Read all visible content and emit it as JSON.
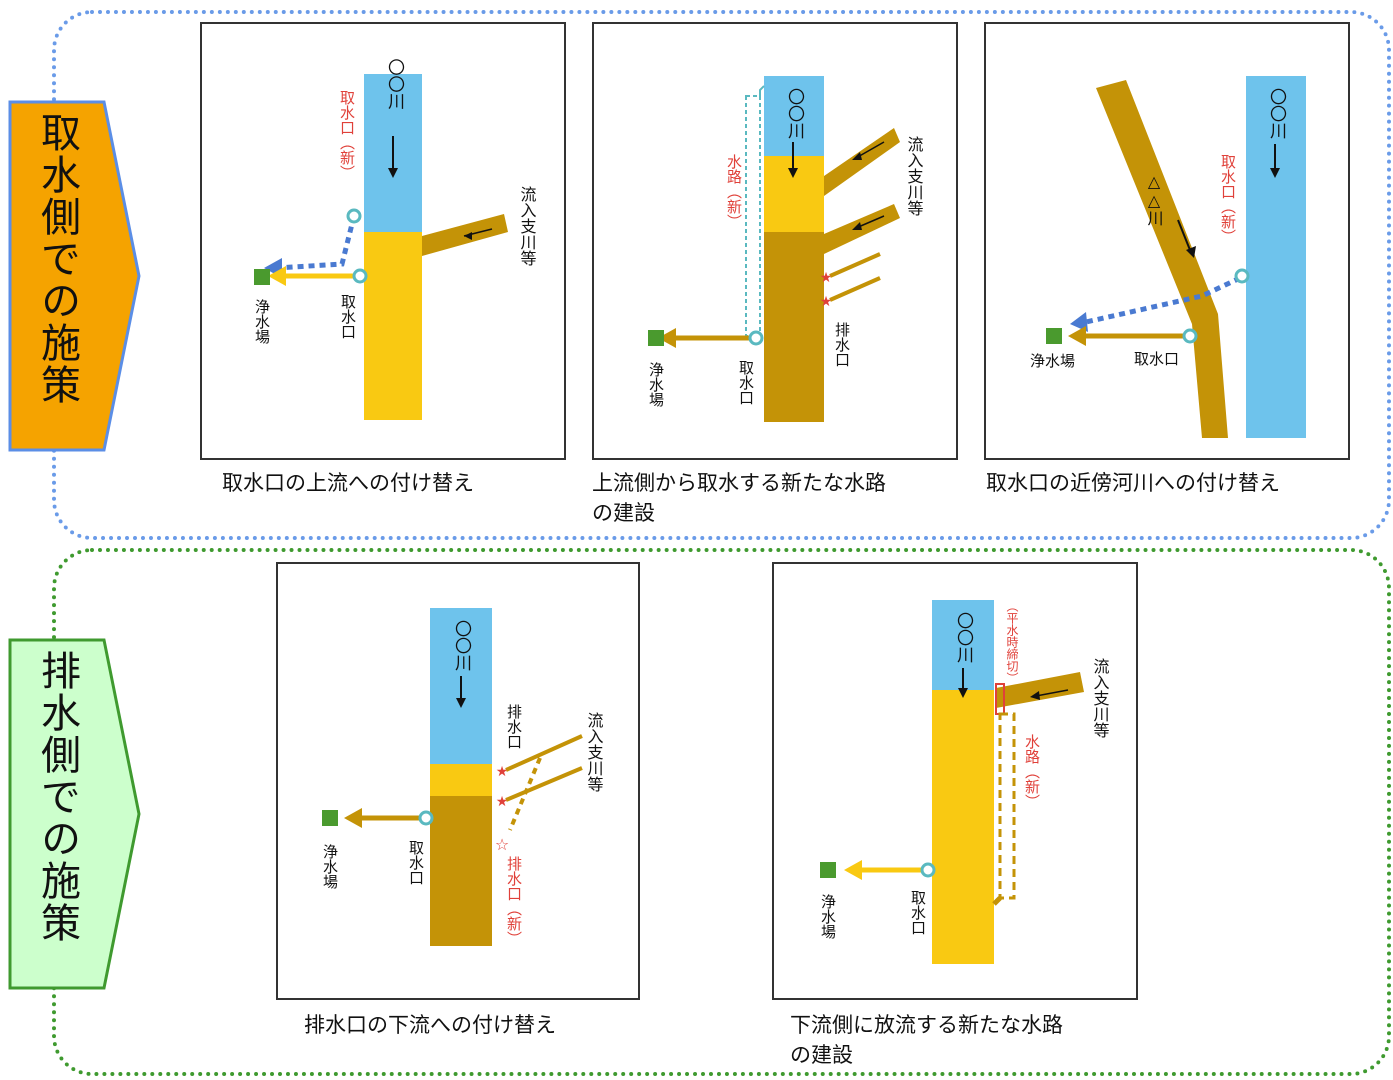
{
  "sections": {
    "intake": {
      "label": "取水側での施策",
      "fill": "#f5a300",
      "border": "#5b8ee6"
    },
    "discharge": {
      "label": "排水側での施策",
      "fill": "#ccffcc",
      "border": "#3f9a2f"
    }
  },
  "colors": {
    "river_blue": "#6ec3ec",
    "mixed_yellow": "#f9c912",
    "polluted_brown": "#c49307",
    "new_label_red": "#e0413a",
    "plant_green": "#4a9a2e",
    "intake_ring": "#5ab9c0",
    "arrow_blue": "#4a7ad1"
  },
  "panels": {
    "p1": {
      "caption": "取水口の上流への付け替え",
      "river": "〇〇川",
      "new_intake": "取水口（新）",
      "tributary": "流入支川等",
      "plant": "浄水場",
      "intake": "取水口"
    },
    "p2": {
      "caption": "上流側から取水する新たな水路\nの建設",
      "river": "〇〇川",
      "new_channel": "水路（新）",
      "tributary": "流入支川等",
      "outfall": "排水口",
      "plant": "浄水場",
      "intake": "取水口"
    },
    "p3": {
      "caption": "取水口の近傍河川への付け替え",
      "river": "〇〇川",
      "nearby_river": "△△川",
      "new_intake": "取水口（新）",
      "plant": "浄水場",
      "intake": "取水口"
    },
    "p4": {
      "caption": "排水口の下流への付け替え",
      "river": "〇〇川",
      "outfall": "排水口",
      "tributary": "流入支川等",
      "new_outfall": "排水口（新）",
      "plant": "浄水場",
      "intake": "取水口"
    },
    "p5": {
      "caption": "下流側に放流する新たな水路\nの建設",
      "river": "〇〇川",
      "closure": "（平水時締切）",
      "tributary": "流入支川等",
      "new_channel": "水路（新）",
      "plant": "浄水場",
      "intake": "取水口"
    }
  }
}
